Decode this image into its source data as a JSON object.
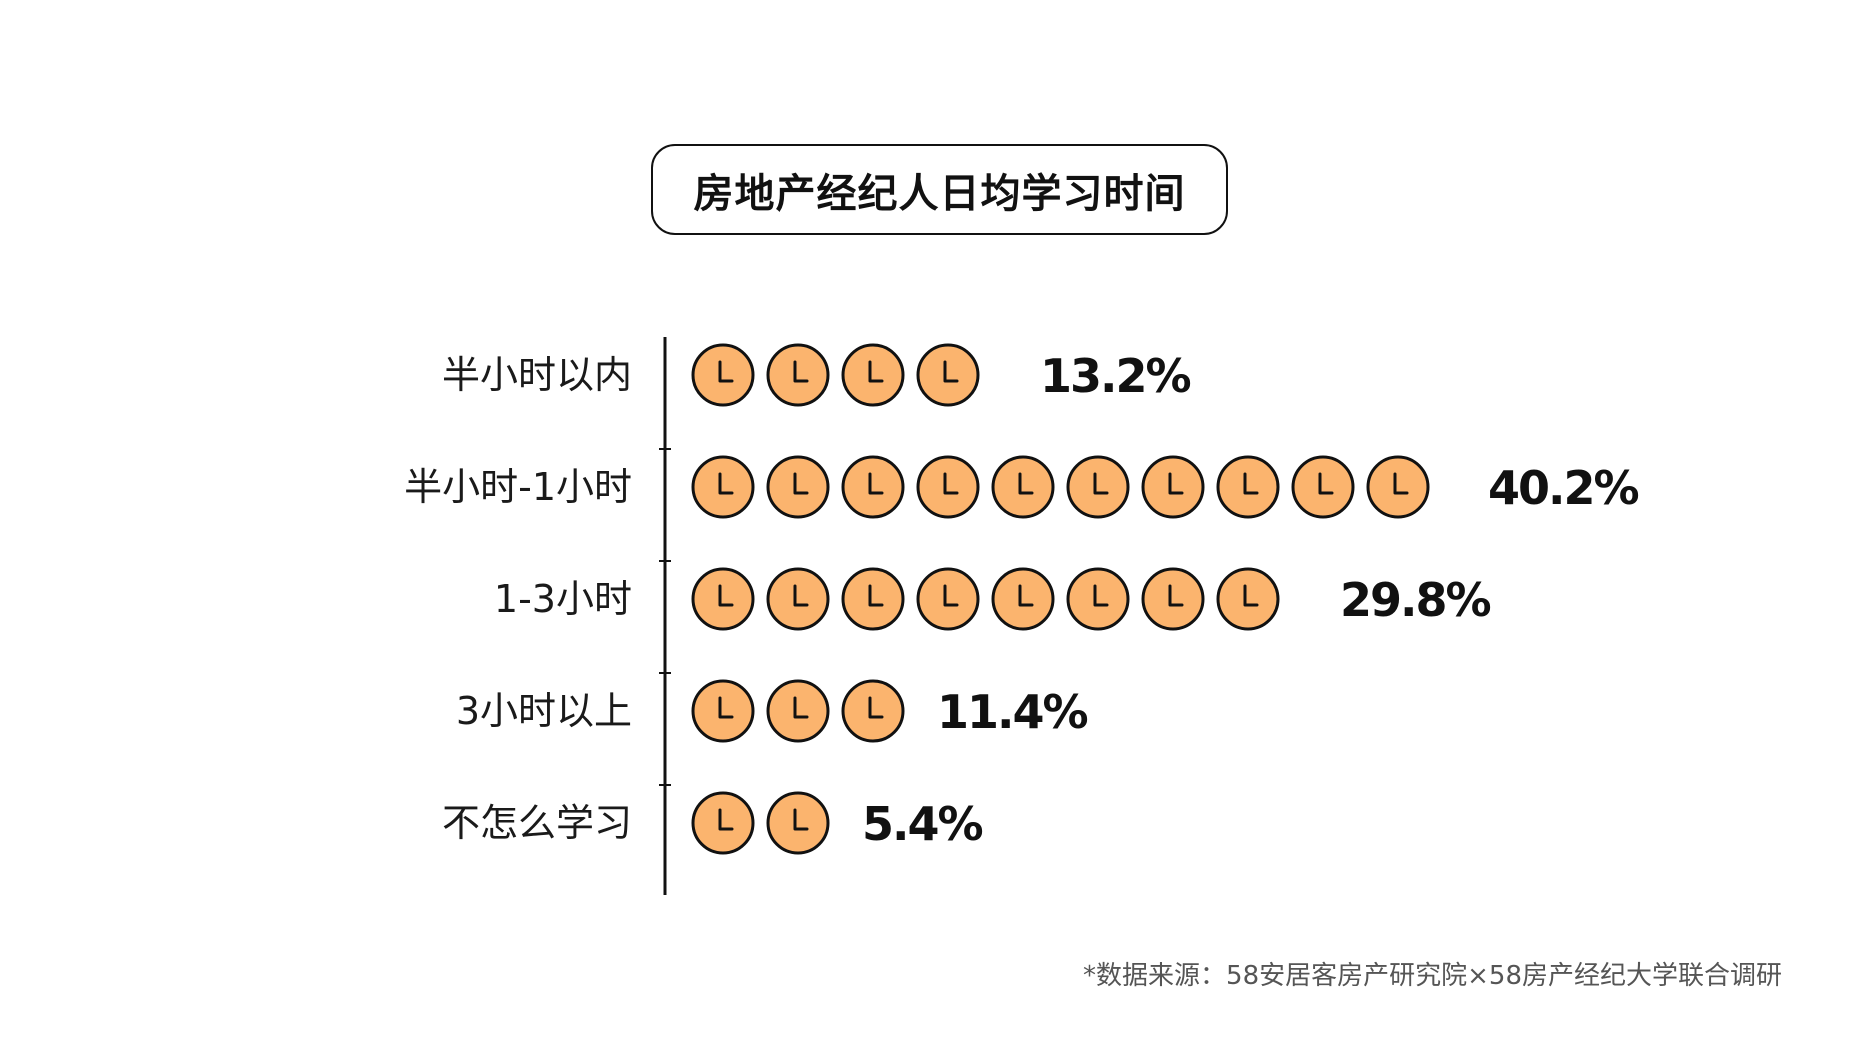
{
  "chart_data": {
    "type": "bar",
    "title": "房地产经纪人日均学习时间",
    "categories": [
      "半小时以内",
      "半小时-1小时",
      "1-3小时",
      "3小时以上",
      "不怎么学习"
    ],
    "values": [
      13.2,
      40.2,
      29.8,
      11.4,
      5.4
    ],
    "value_labels": [
      "13.2%",
      "40.2%",
      "29.8%",
      "11.4%",
      "5.4%"
    ],
    "icon_counts": [
      4,
      10,
      8,
      3,
      2
    ],
    "icon": "clock-icon",
    "orientation": "horizontal",
    "grid": false,
    "legend": "none",
    "colors": {
      "icon_fill": "#FBB46E",
      "icon_stroke": "#111111",
      "axis": "#111111"
    }
  },
  "footnote": "*数据来源：58安居客房产研究院×58房产经纪大学联合调研"
}
